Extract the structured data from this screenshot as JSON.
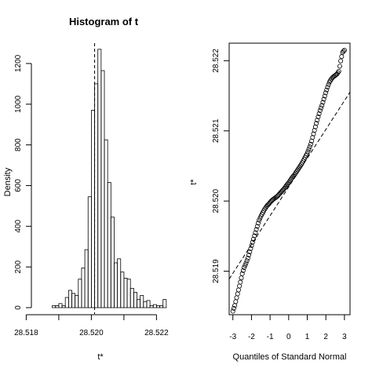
{
  "colors": {
    "ink": "#000000",
    "background": "#ffffff"
  },
  "chart_data": [
    {
      "type": "bar",
      "title": "Histogram of t",
      "xlabel": "t*",
      "ylabel": "Density",
      "xlim": [
        28.5184,
        28.5224
      ],
      "ylim": [
        0,
        1300
      ],
      "x_ticks": [
        "28.518",
        "28.520",
        "28.522"
      ],
      "y_ticks": [
        "0",
        "200",
        "400",
        "600",
        "800",
        "1000",
        "1200"
      ],
      "bin_width": 0.0001,
      "bin_edges": [
        28.5188,
        28.5189,
        28.519,
        28.5191,
        28.5192,
        28.5193,
        28.5194,
        28.5195,
        28.5196,
        28.5197,
        28.5198,
        28.5199,
        28.52,
        28.5201,
        28.5202,
        28.5203,
        28.5204,
        28.5205,
        28.5206,
        28.5207,
        28.5208,
        28.5209,
        28.521,
        28.5211,
        28.5212,
        28.5213,
        28.5214,
        28.5215,
        28.5216,
        28.5217,
        28.5218,
        28.5219,
        28.522,
        28.5221,
        28.5222,
        28.5223
      ],
      "values": [
        10,
        10,
        20,
        10,
        50,
        85,
        70,
        60,
        140,
        195,
        285,
        545,
        970,
        1100,
        1270,
        1165,
        825,
        615,
        445,
        220,
        240,
        175,
        145,
        140,
        95,
        75,
        40,
        60,
        30,
        35,
        10,
        15,
        10,
        10,
        40
      ],
      "reference_line": {
        "x": 28.5201,
        "style": "dashed"
      },
      "grid": false
    },
    {
      "type": "scatter",
      "title": "",
      "xlabel": "Quantiles of Standard Normal",
      "ylabel": "t*",
      "xlim": [
        -3.2,
        3.3
      ],
      "ylim": [
        28.51838,
        28.52225
      ],
      "x_ticks": [
        "-3",
        "-2",
        "-1",
        "0",
        "1",
        "2",
        "3"
      ],
      "y_ticks": [
        "28.519",
        "28.520",
        "28.521",
        "28.522"
      ],
      "points_shown": 120,
      "x": [
        -3.0,
        -2.9,
        -2.8,
        -2.7,
        -2.6,
        -2.5,
        -2.4,
        -2.3,
        -2.2,
        -2.1,
        -2.0,
        -1.9,
        -1.8,
        -1.7,
        -1.6,
        -1.5,
        -1.4,
        -1.3,
        -1.2,
        -1.1,
        -1.0,
        -0.9,
        -0.8,
        -0.7,
        -0.6,
        -0.5,
        -0.4,
        -0.3,
        -0.2,
        -0.1,
        0.0,
        0.1,
        0.2,
        0.3,
        0.4,
        0.5,
        0.6,
        0.7,
        0.8,
        0.9,
        1.0,
        1.1,
        1.2,
        1.3,
        1.4,
        1.5,
        1.6,
        1.7,
        1.8,
        1.9,
        2.0,
        2.1,
        2.2,
        2.3,
        2.4,
        2.5,
        2.6,
        2.7,
        2.8,
        2.9,
        3.0
      ],
      "y": [
        28.51843,
        28.51851,
        28.51862,
        28.51873,
        28.51884,
        28.51896,
        28.51905,
        28.51911,
        28.51918,
        28.51927,
        28.51936,
        28.51945,
        28.51954,
        28.51963,
        28.51972,
        28.51978,
        28.51983,
        28.51988,
        28.51992,
        28.51995,
        28.51998,
        28.52001,
        28.52003,
        28.52005,
        28.52007,
        28.5201,
        28.52013,
        28.52016,
        28.52019,
        28.52023,
        28.52026,
        28.5203,
        28.52034,
        28.52037,
        28.52041,
        28.52045,
        28.52049,
        28.52053,
        28.52058,
        28.52063,
        28.52068,
        28.52075,
        28.52082,
        28.52092,
        28.52102,
        28.52112,
        28.52121,
        28.5213,
        28.52137,
        28.52146,
        28.52155,
        28.52163,
        28.5217,
        28.52174,
        28.52177,
        28.52179,
        28.52181,
        28.52185,
        28.522,
        28.52212,
        28.52215
      ],
      "reference_line": {
        "intercept": 28.5202,
        "slope": 0.00041,
        "style": "dashed"
      },
      "grid": false
    }
  ]
}
